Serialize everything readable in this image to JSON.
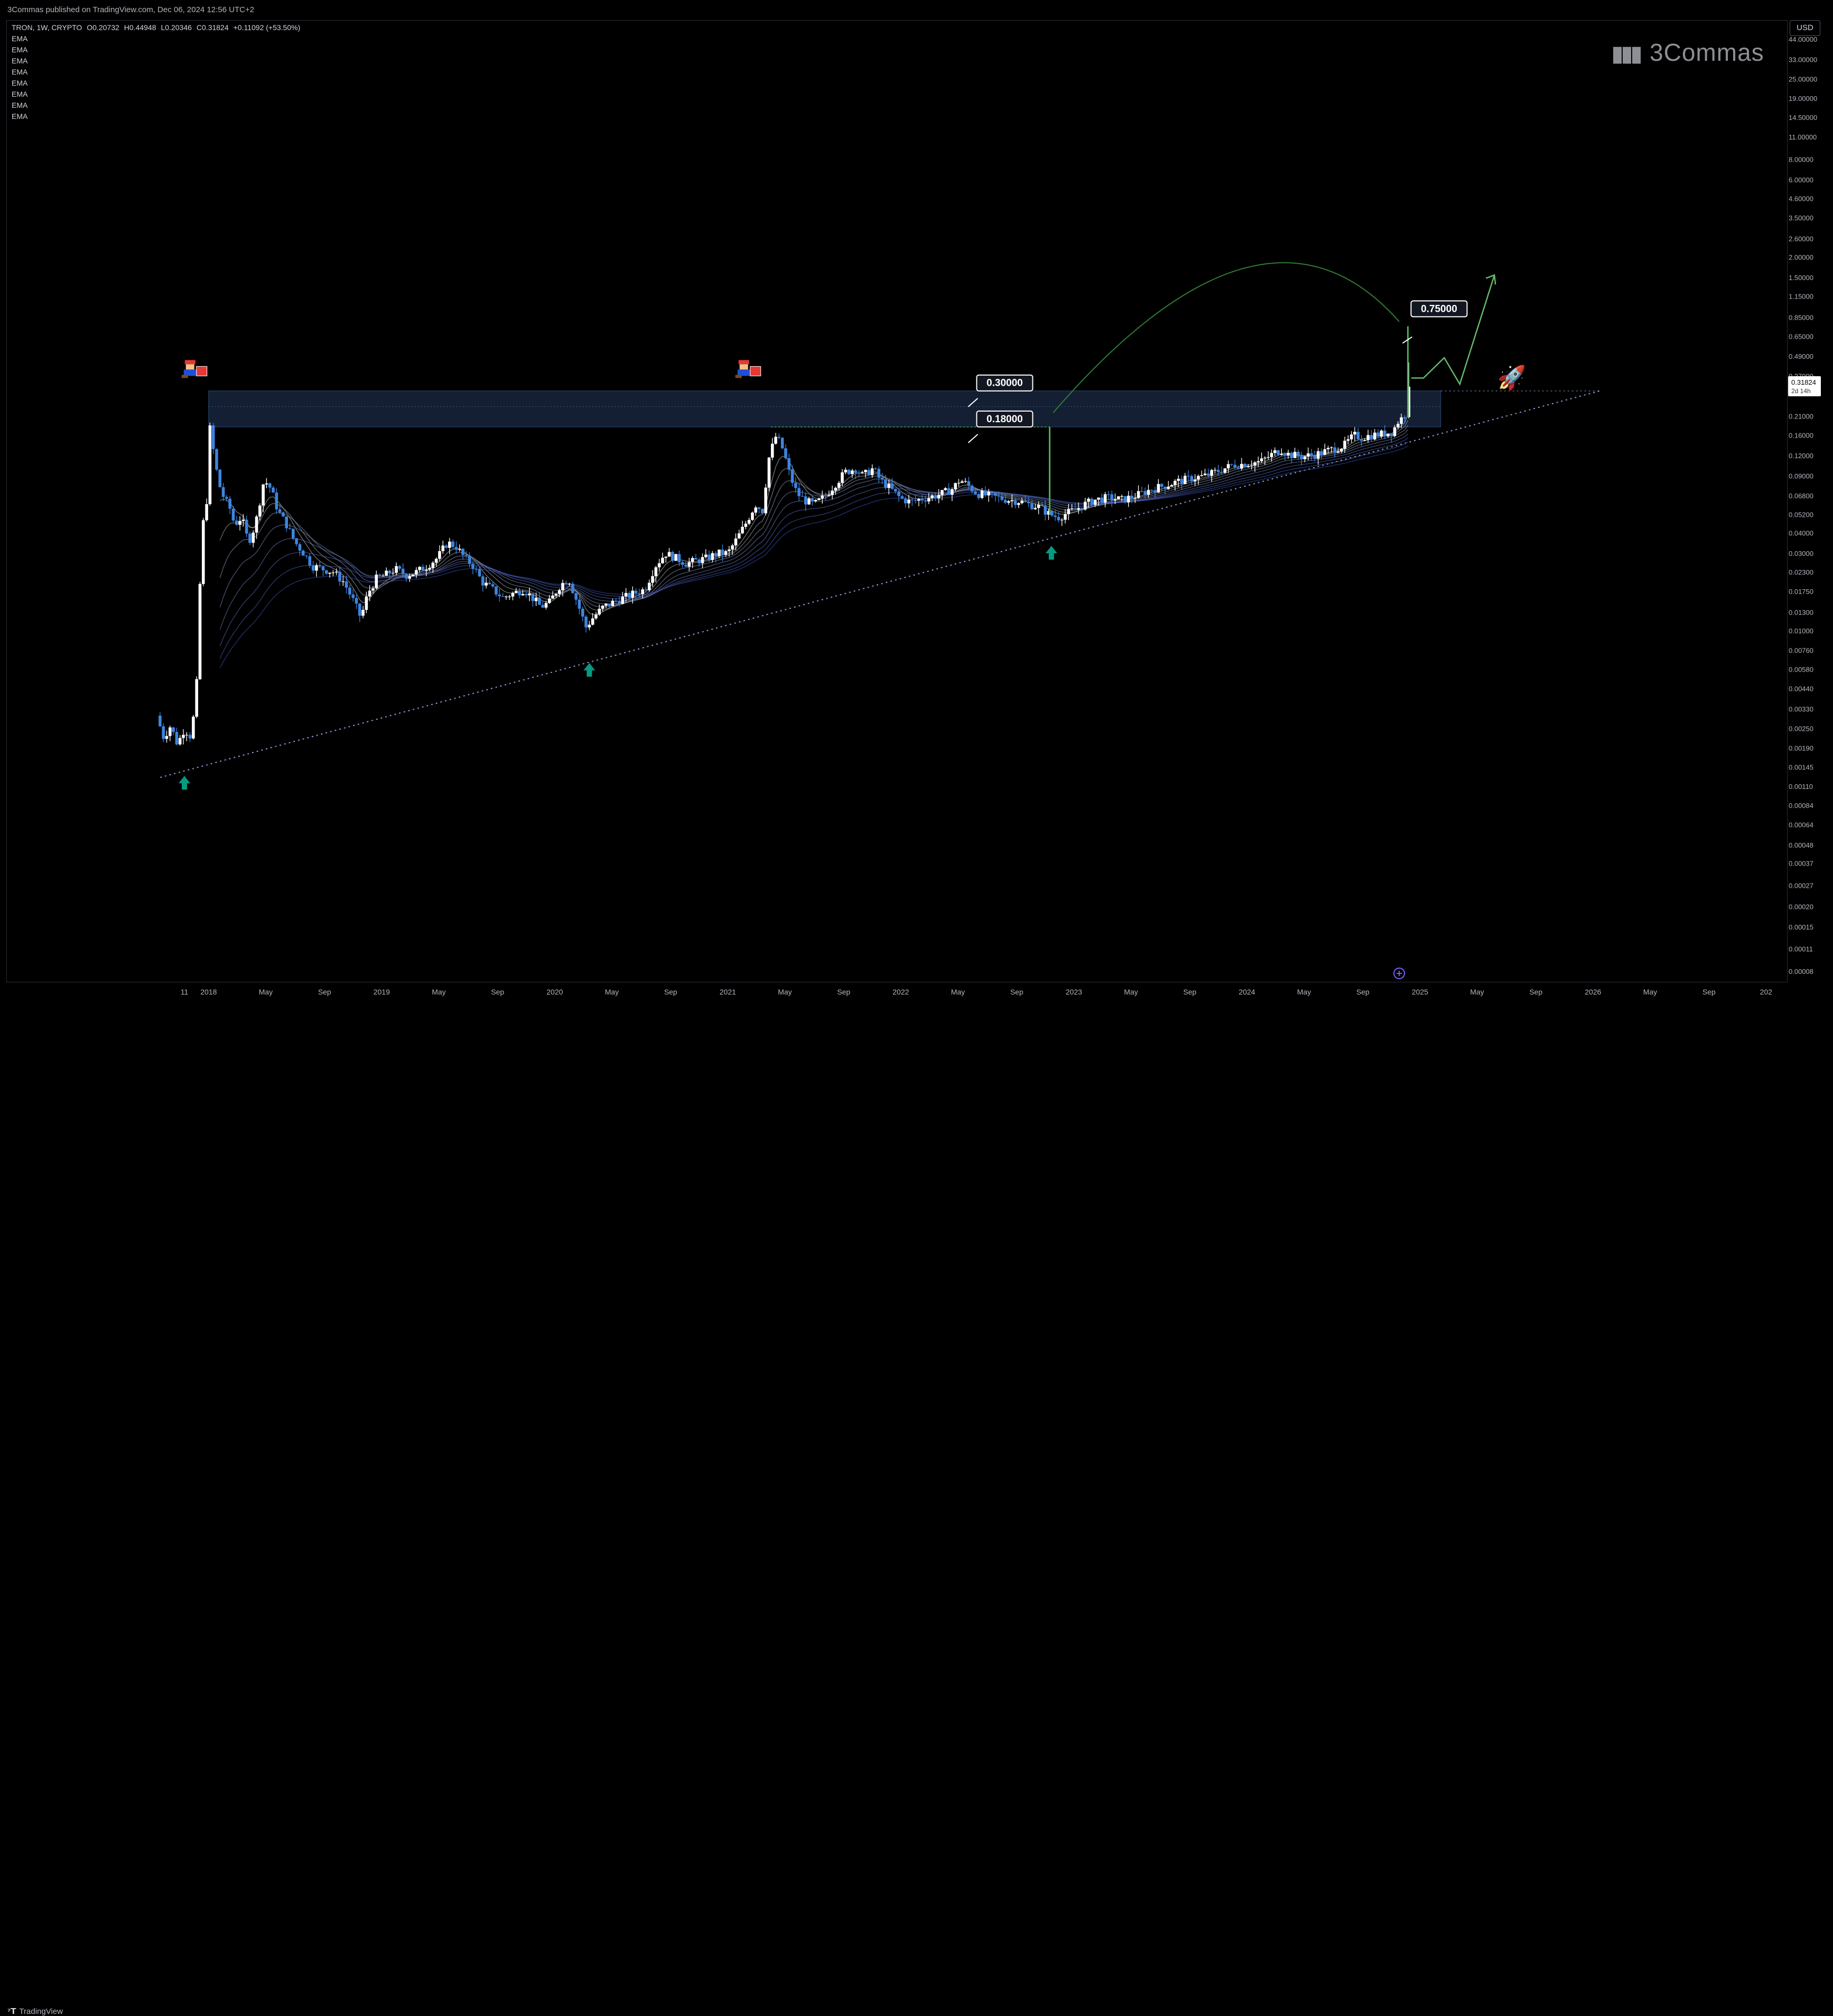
{
  "header": {
    "published": "3Commas published on TradingView.com, Dec 06, 2024 12:56 UTC+2"
  },
  "legend": {
    "symbol": "TRON, 1W, CRYPTO",
    "open": "O0.20732",
    "high": "H0.44948",
    "low": "L0.20346",
    "close": "C0.31824",
    "change": "+0.11092 (+53.50%)",
    "indicators": [
      "EMA",
      "EMA",
      "EMA",
      "EMA",
      "EMA",
      "EMA",
      "EMA",
      "EMA"
    ]
  },
  "watermark": {
    "text": "3Commas"
  },
  "currency": {
    "label": "USD"
  },
  "footer": {
    "brand": "TradingView"
  },
  "colors": {
    "bull": "#ffffff",
    "bear": "#3d85e0",
    "zone": "#1b2a44",
    "arc": "#2f7d32",
    "target": "#4caf50",
    "arrow_up": "#089981",
    "grid_axis": "#b2b5be"
  },
  "chart_data": {
    "type": "candlestick",
    "symbol": "TRON",
    "timeframe": "1W",
    "scale": "log",
    "y_ticks": [
      "44.00000",
      "33.00000",
      "25.00000",
      "19.00000",
      "14.50000",
      "11.00000",
      "8.00000",
      "6.00000",
      "4.60000",
      "3.50000",
      "2.60000",
      "2.00000",
      "1.50000",
      "1.15000",
      "0.85000",
      "0.65000",
      "0.49000",
      "0.37000",
      "0.21000",
      "0.16000",
      "0.12000",
      "0.09000",
      "0.06800",
      "0.05200",
      "0.04000",
      "0.03000",
      "0.02300",
      "0.01750",
      "0.01300",
      "0.01000",
      "0.00760",
      "0.00580",
      "0.00440",
      "0.00330",
      "0.00250",
      "0.00190",
      "0.00145",
      "0.00110",
      "0.00084",
      "0.00064",
      "0.00048",
      "0.00037",
      "0.00027",
      "0.00020",
      "0.00015",
      "0.00011",
      "0.00008"
    ],
    "y_tick_values": [
      44,
      33,
      25,
      19,
      14.5,
      11,
      8,
      6,
      4.6,
      3.5,
      2.6,
      2,
      1.5,
      1.15,
      0.85,
      0.65,
      0.49,
      0.37,
      0.21,
      0.16,
      0.12,
      0.09,
      0.068,
      0.052,
      0.04,
      0.03,
      0.023,
      0.0175,
      0.013,
      0.01,
      0.0076,
      0.0058,
      0.0044,
      0.0033,
      0.0025,
      0.0019,
      0.00145,
      0.0011,
      0.00084,
      0.00064,
      0.00048,
      0.00037,
      0.00027,
      0.0002,
      0.00015,
      0.00011,
      8e-05
    ],
    "x_ticks": [
      {
        "label": "11",
        "t": 2017.86
      },
      {
        "label": "2018",
        "t": 2018.0
      },
      {
        "label": "May",
        "t": 2018.33
      },
      {
        "label": "Sep",
        "t": 2018.67
      },
      {
        "label": "2019",
        "t": 2019.0
      },
      {
        "label": "May",
        "t": 2019.33
      },
      {
        "label": "Sep",
        "t": 2019.67
      },
      {
        "label": "2020",
        "t": 2020.0
      },
      {
        "label": "May",
        "t": 2020.33
      },
      {
        "label": "Sep",
        "t": 2020.67
      },
      {
        "label": "2021",
        "t": 2021.0
      },
      {
        "label": "May",
        "t": 2021.33
      },
      {
        "label": "Sep",
        "t": 2021.67
      },
      {
        "label": "2022",
        "t": 2022.0
      },
      {
        "label": "May",
        "t": 2022.33
      },
      {
        "label": "Sep",
        "t": 2022.67
      },
      {
        "label": "2023",
        "t": 2023.0
      },
      {
        "label": "May",
        "t": 2023.33
      },
      {
        "label": "Sep",
        "t": 2023.67
      },
      {
        "label": "2024",
        "t": 2024.0
      },
      {
        "label": "May",
        "t": 2024.33
      },
      {
        "label": "Sep",
        "t": 2024.67
      },
      {
        "label": "2025",
        "t": 2025.0
      },
      {
        "label": "May",
        "t": 2025.33
      },
      {
        "label": "Sep",
        "t": 2025.67
      },
      {
        "label": "2026",
        "t": 2026.0
      },
      {
        "label": "May",
        "t": 2026.33
      },
      {
        "label": "Sep",
        "t": 2026.67
      },
      {
        "label": "202",
        "t": 2027.0
      }
    ],
    "price_path": [
      [
        2017.7,
        0.003
      ],
      [
        2017.74,
        0.0022
      ],
      [
        2017.78,
        0.0026
      ],
      [
        2017.82,
        0.002
      ],
      [
        2017.86,
        0.0025
      ],
      [
        2017.9,
        0.0022
      ],
      [
        2017.93,
        0.0045
      ],
      [
        2017.96,
        0.04
      ],
      [
        2017.99,
        0.065
      ],
      [
        2018.01,
        0.2
      ],
      [
        2018.03,
        0.12
      ],
      [
        2018.06,
        0.08
      ],
      [
        2018.09,
        0.065
      ],
      [
        2018.12,
        0.058
      ],
      [
        2018.15,
        0.045
      ],
      [
        2018.19,
        0.05
      ],
      [
        2018.23,
        0.035
      ],
      [
        2018.27,
        0.045
      ],
      [
        2018.32,
        0.085
      ],
      [
        2018.36,
        0.075
      ],
      [
        2018.4,
        0.055
      ],
      [
        2018.45,
        0.045
      ],
      [
        2018.5,
        0.035
      ],
      [
        2018.55,
        0.03
      ],
      [
        2018.6,
        0.025
      ],
      [
        2018.66,
        0.024
      ],
      [
        2018.72,
        0.023
      ],
      [
        2018.78,
        0.02
      ],
      [
        2018.84,
        0.015
      ],
      [
        2018.88,
        0.012
      ],
      [
        2018.92,
        0.017
      ],
      [
        2018.97,
        0.021
      ],
      [
        2019.02,
        0.022
      ],
      [
        2019.08,
        0.024
      ],
      [
        2019.14,
        0.022
      ],
      [
        2019.2,
        0.023
      ],
      [
        2019.26,
        0.025
      ],
      [
        2019.32,
        0.028
      ],
      [
        2019.38,
        0.035
      ],
      [
        2019.43,
        0.033
      ],
      [
        2019.48,
        0.028
      ],
      [
        2019.53,
        0.025
      ],
      [
        2019.58,
        0.02
      ],
      [
        2019.64,
        0.018
      ],
      [
        2019.7,
        0.016
      ],
      [
        2019.76,
        0.017
      ],
      [
        2019.82,
        0.018
      ],
      [
        2019.87,
        0.016
      ],
      [
        2019.92,
        0.014
      ],
      [
        2019.97,
        0.015
      ],
      [
        2020.03,
        0.019
      ],
      [
        2020.08,
        0.021
      ],
      [
        2020.13,
        0.015
      ],
      [
        2020.18,
        0.0105
      ],
      [
        2020.22,
        0.012
      ],
      [
        2020.28,
        0.014
      ],
      [
        2020.34,
        0.015
      ],
      [
        2020.4,
        0.016
      ],
      [
        2020.46,
        0.017
      ],
      [
        2020.52,
        0.018
      ],
      [
        2020.58,
        0.025
      ],
      [
        2020.64,
        0.03
      ],
      [
        2020.7,
        0.028
      ],
      [
        2020.76,
        0.026
      ],
      [
        2020.82,
        0.027
      ],
      [
        2020.88,
        0.028
      ],
      [
        2020.94,
        0.03
      ],
      [
        2021.0,
        0.03
      ],
      [
        2021.04,
        0.035
      ],
      [
        2021.1,
        0.045
      ],
      [
        2021.16,
        0.06
      ],
      [
        2021.2,
        0.055
      ],
      [
        2021.24,
        0.12
      ],
      [
        2021.28,
        0.16
      ],
      [
        2021.32,
        0.13
      ],
      [
        2021.36,
        0.09
      ],
      [
        2021.4,
        0.07
      ],
      [
        2021.45,
        0.063
      ],
      [
        2021.5,
        0.06
      ],
      [
        2021.56,
        0.067
      ],
      [
        2021.62,
        0.08
      ],
      [
        2021.68,
        0.095
      ],
      [
        2021.74,
        0.1
      ],
      [
        2021.78,
        0.09
      ],
      [
        2021.84,
        0.1
      ],
      [
        2021.88,
        0.085
      ],
      [
        2021.94,
        0.075
      ],
      [
        2022.0,
        0.065
      ],
      [
        2022.06,
        0.062
      ],
      [
        2022.12,
        0.065
      ],
      [
        2022.18,
        0.067
      ],
      [
        2022.24,
        0.07
      ],
      [
        2022.3,
        0.075
      ],
      [
        2022.34,
        0.085
      ],
      [
        2022.38,
        0.08
      ],
      [
        2022.44,
        0.07
      ],
      [
        2022.5,
        0.068
      ],
      [
        2022.56,
        0.066
      ],
      [
        2022.62,
        0.064
      ],
      [
        2022.68,
        0.063
      ],
      [
        2022.74,
        0.06
      ],
      [
        2022.8,
        0.058
      ],
      [
        2022.86,
        0.052
      ],
      [
        2022.91,
        0.05
      ],
      [
        2022.96,
        0.053
      ],
      [
        2023.0,
        0.055
      ],
      [
        2023.06,
        0.06
      ],
      [
        2023.12,
        0.064
      ],
      [
        2023.2,
        0.066
      ],
      [
        2023.28,
        0.064
      ],
      [
        2023.36,
        0.068
      ],
      [
        2023.44,
        0.074
      ],
      [
        2023.52,
        0.078
      ],
      [
        2023.6,
        0.083
      ],
      [
        2023.68,
        0.087
      ],
      [
        2023.76,
        0.09
      ],
      [
        2023.84,
        0.097
      ],
      [
        2023.92,
        0.105
      ],
      [
        2024.0,
        0.107
      ],
      [
        2024.08,
        0.11
      ],
      [
        2024.16,
        0.125
      ],
      [
        2024.2,
        0.13
      ],
      [
        2024.24,
        0.122
      ],
      [
        2024.32,
        0.118
      ],
      [
        2024.4,
        0.122
      ],
      [
        2024.48,
        0.13
      ],
      [
        2024.56,
        0.138
      ],
      [
        2024.62,
        0.16
      ],
      [
        2024.66,
        0.155
      ],
      [
        2024.72,
        0.16
      ],
      [
        2024.78,
        0.163
      ],
      [
        2024.84,
        0.168
      ],
      [
        2024.88,
        0.2
      ],
      [
        2024.91,
        0.207
      ],
      [
        2024.935,
        0.318
      ]
    ],
    "resistance_zone": {
      "high": 0.3,
      "low": 0.18,
      "from": 2018.0,
      "to": 2025.12
    },
    "support_trendline": [
      [
        2017.72,
        0.00125
      ],
      [
        2026.04,
        0.3
      ]
    ],
    "labels": [
      {
        "text": "0.30000",
        "price": 0.3,
        "t": 2022.42
      },
      {
        "text": "0.18000",
        "price": 0.18,
        "t": 2022.42
      },
      {
        "text": "0.75000",
        "price": 0.75,
        "t": 2024.93
      }
    ],
    "target_move": {
      "from_price": 0.207,
      "to_price": 0.75,
      "t": 2024.93
    },
    "measured_move": {
      "from_price": 0.052,
      "to_price": 0.18,
      "t": 2022.86
    },
    "projection": [
      [
        2024.95,
        0.36
      ],
      [
        2025.02,
        0.36
      ],
      [
        2025.14,
        0.48
      ],
      [
        2025.23,
        0.33
      ],
      [
        2025.43,
        1.55
      ]
    ],
    "arc": {
      "from": [
        2022.88,
        0.22
      ],
      "peak": [
        2024.1,
        1.0
      ],
      "to": [
        2024.88,
        0.8
      ]
    },
    "up_arrows": [
      [
        2017.86,
        0.00115
      ],
      [
        2020.2,
        0.0057
      ],
      [
        2022.87,
        0.03
      ]
    ],
    "markers": [
      [
        2017.85,
        0.36
      ],
      [
        2021.05,
        0.36
      ]
    ],
    "last_price": {
      "value": "0.31824",
      "countdown": "2d 14h"
    }
  }
}
